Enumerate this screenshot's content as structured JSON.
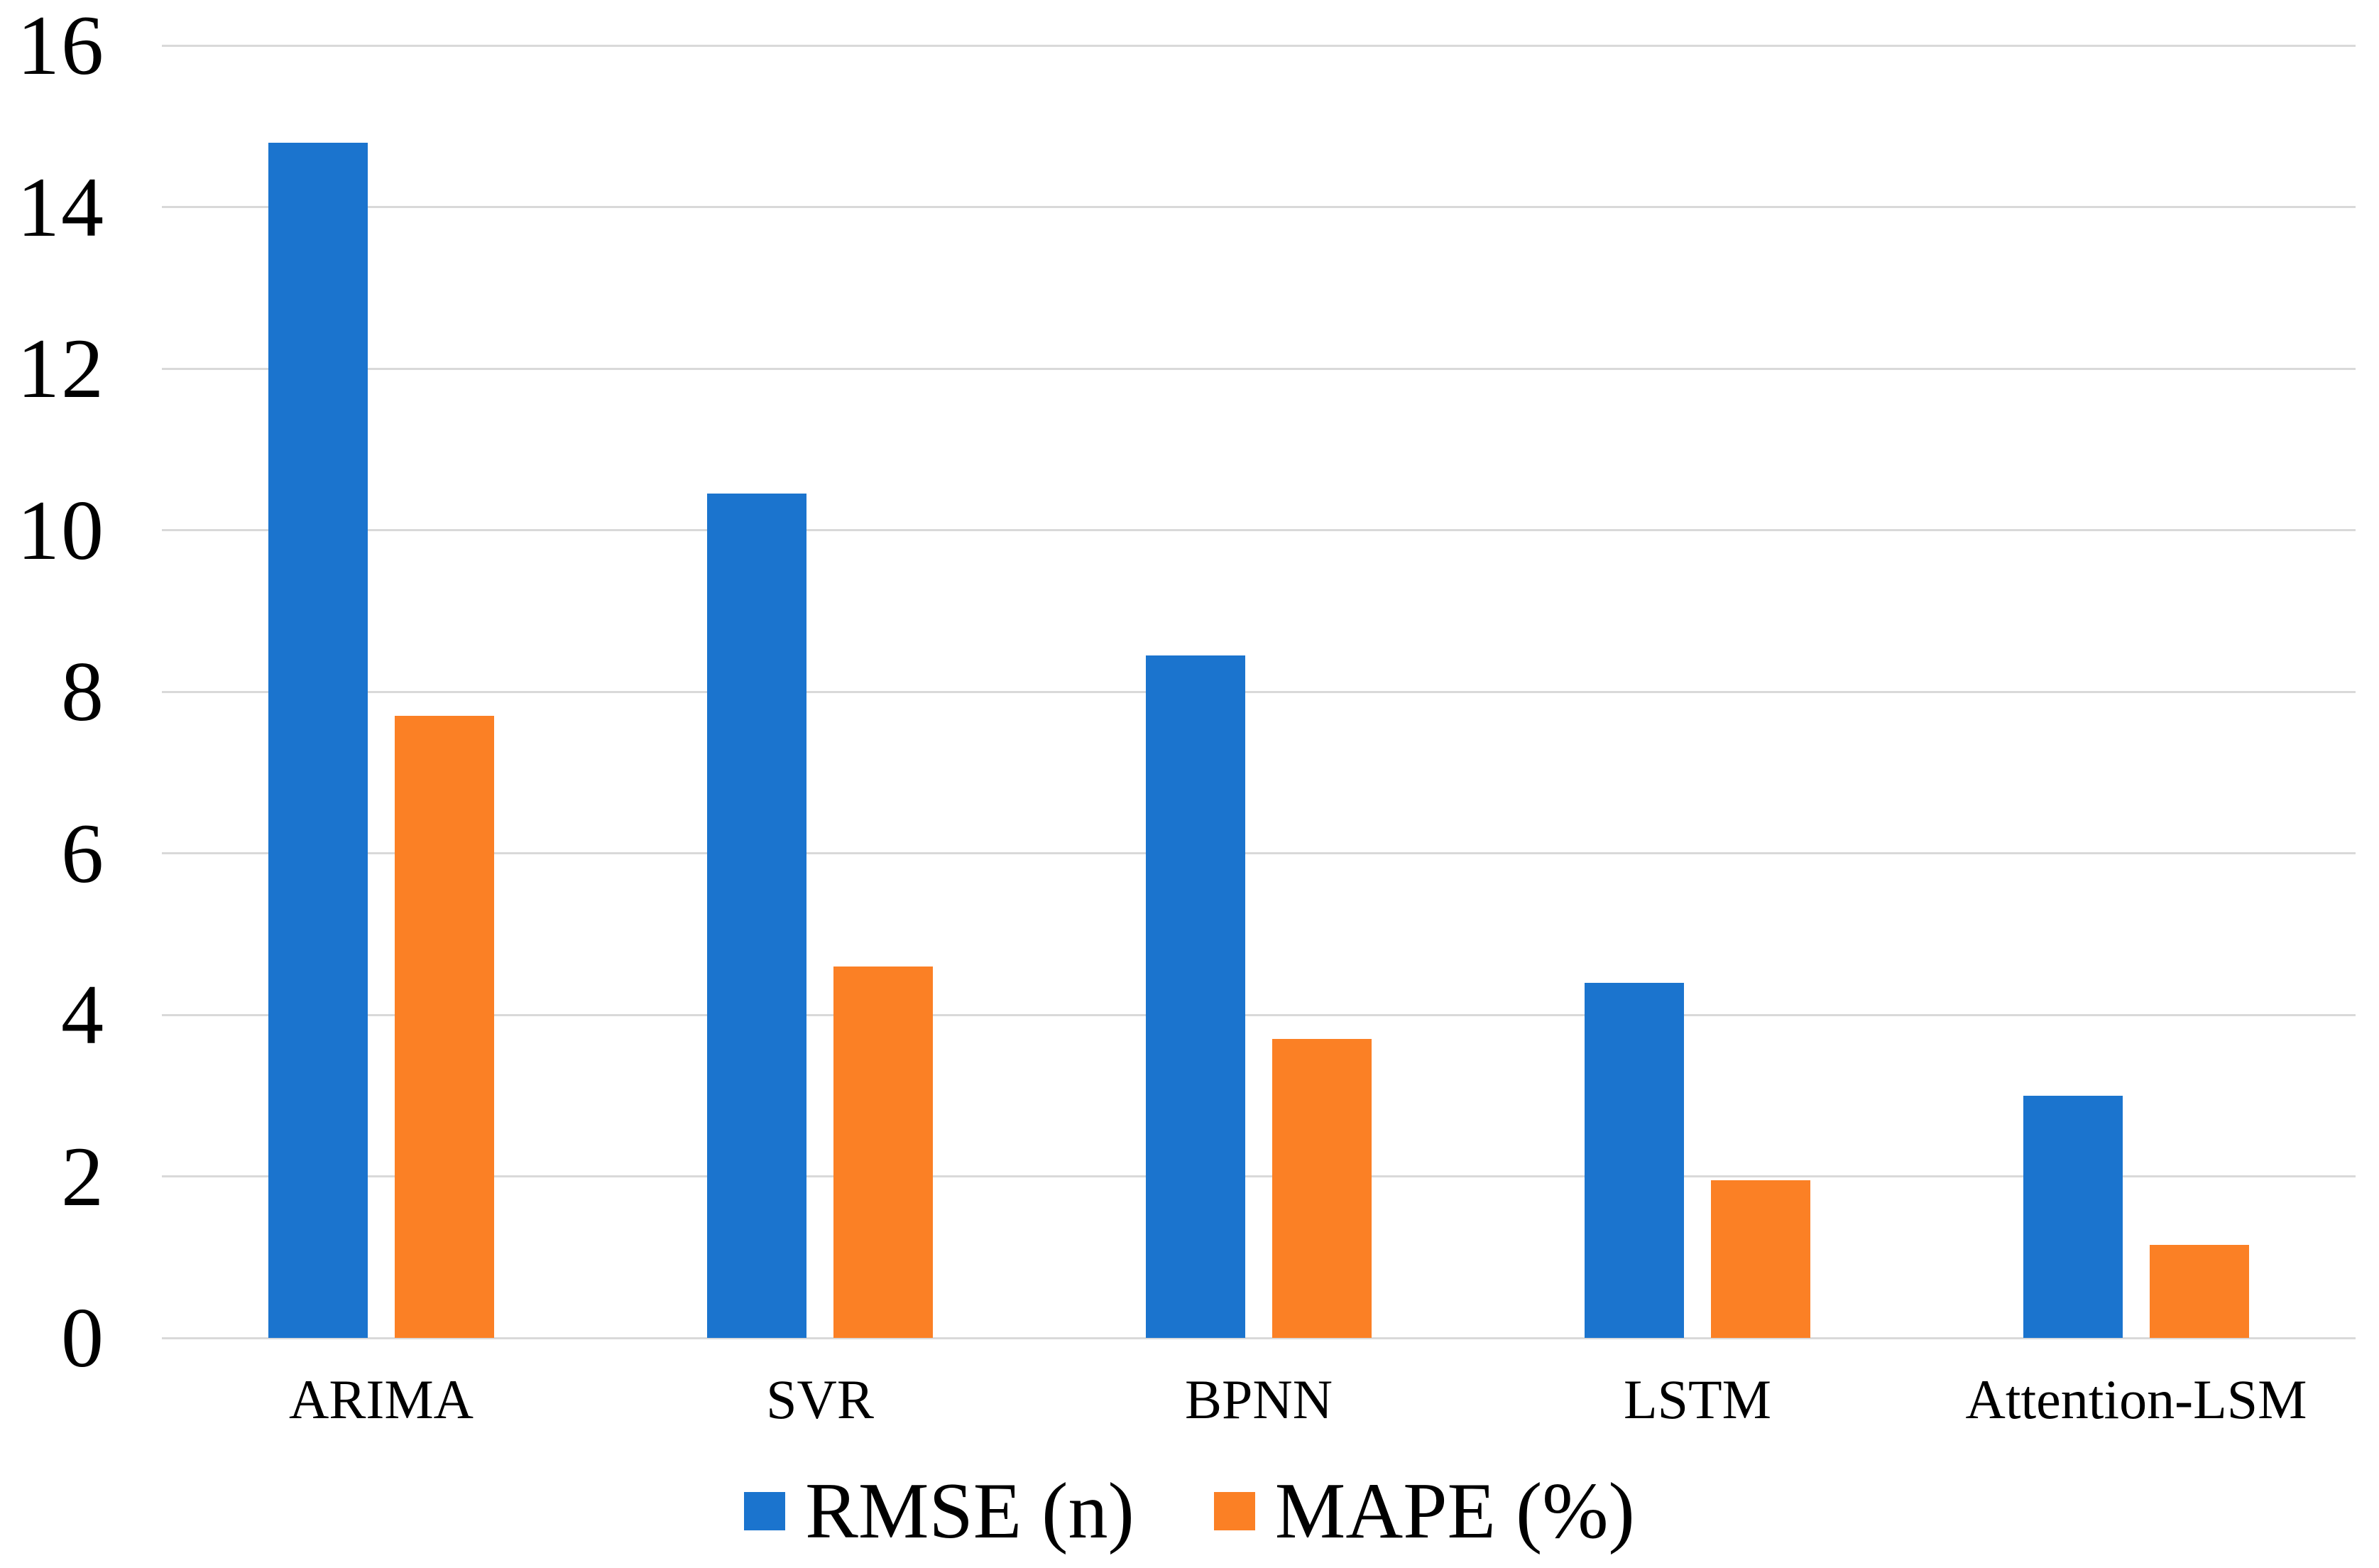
{
  "figure": {
    "background": "#FFFFFF",
    "text_color": "#000000",
    "gridline_color": "#D9D9D9"
  },
  "chart_data": {
    "type": "bar",
    "title": "",
    "xlabel": "",
    "ylabel": "",
    "categories": [
      "ARIMA",
      "SVR",
      "BPNN",
      "LSTM",
      "Attention-LSM"
    ],
    "series": [
      {
        "name": "RMSE (n)",
        "color": "#1B74CE",
        "values": [
          14.8,
          10.45,
          8.45,
          4.4,
          3.0
        ]
      },
      {
        "name": "MAPE (%)",
        "color": "#FB8025",
        "values": [
          7.7,
          4.6,
          3.7,
          1.95,
          1.15
        ]
      }
    ],
    "ylim": [
      0,
      16
    ],
    "yticks": [
      0,
      2,
      4,
      6,
      8,
      10,
      12,
      14,
      16
    ],
    "grid": "horizontal",
    "legend_position": "bottom-center"
  }
}
